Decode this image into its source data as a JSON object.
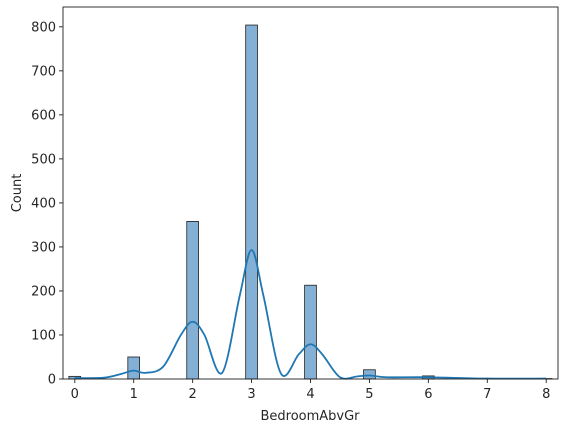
{
  "chart_data": {
    "type": "bar",
    "xlabel": "BedroomAbvGr",
    "ylabel": "Count",
    "xlim": [
      -0.2,
      8.2
    ],
    "ylim": [
      0,
      845
    ],
    "xticks": [
      0,
      1,
      2,
      3,
      4,
      5,
      6,
      7,
      8
    ],
    "yticks": [
      0,
      100,
      200,
      300,
      400,
      500,
      600,
      700,
      800
    ],
    "bin_width": 0.2,
    "bins": [
      {
        "x": 0,
        "count": 6
      },
      {
        "x": 1,
        "count": 50
      },
      {
        "x": 2,
        "count": 358
      },
      {
        "x": 3,
        "count": 804
      },
      {
        "x": 4,
        "count": 213
      },
      {
        "x": 5,
        "count": 21
      },
      {
        "x": 6,
        "count": 7
      },
      {
        "x": 8,
        "count": 1
      }
    ],
    "kde": {
      "x": [
        0,
        0.5,
        0.8,
        1.0,
        1.2,
        1.5,
        1.8,
        2.0,
        2.2,
        2.5,
        2.8,
        3.0,
        3.2,
        3.5,
        3.8,
        4.0,
        4.2,
        4.5,
        4.8,
        5.0,
        5.3,
        6.0,
        7.0,
        8.0
      ],
      "y": [
        2,
        3,
        12,
        19,
        14,
        28,
        100,
        130,
        100,
        14,
        190,
        293,
        190,
        12,
        56,
        79,
        56,
        4,
        6,
        8,
        4,
        4,
        1,
        1
      ]
    },
    "colors": {
      "bar_fill": "#85b0d5",
      "bar_edge": "#1f1f1f",
      "kde_line": "#1f77b4"
    },
    "grid": false
  }
}
